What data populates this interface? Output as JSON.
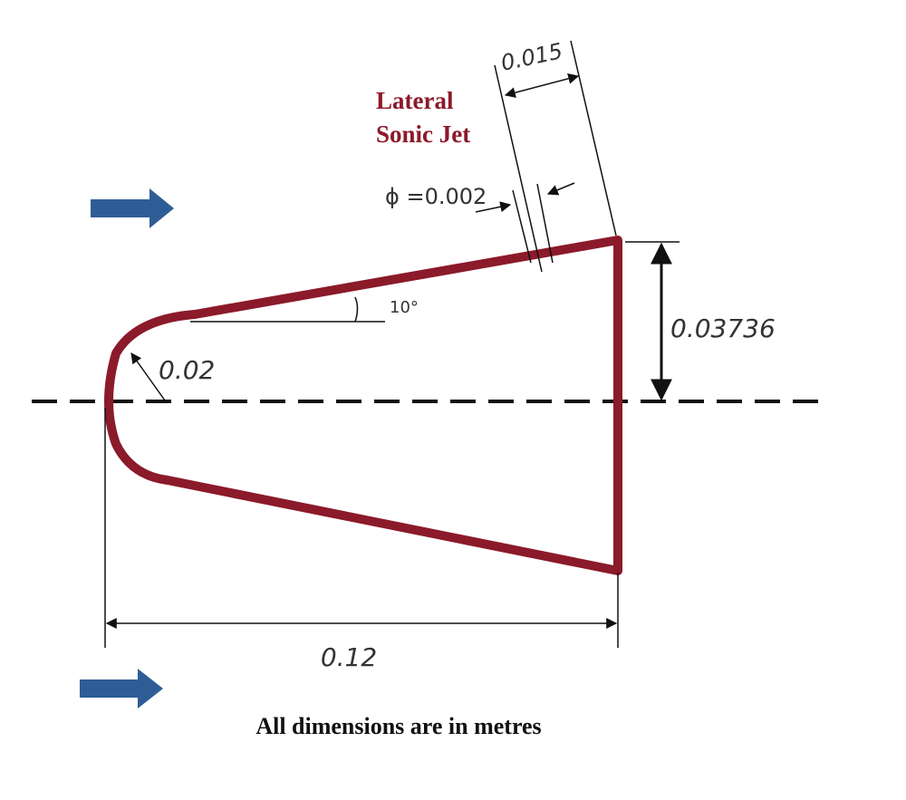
{
  "labels": {
    "jet_lines": [
      "Lateral",
      "Sonic Jet"
    ],
    "jet_spacing": "0.015",
    "jet_diameter": "ϕ =0.002",
    "angle": "10°",
    "half_height": "0.03736",
    "nose_radius": "0.02",
    "length": "0.12",
    "note": "All dimensions are in metres"
  }
}
